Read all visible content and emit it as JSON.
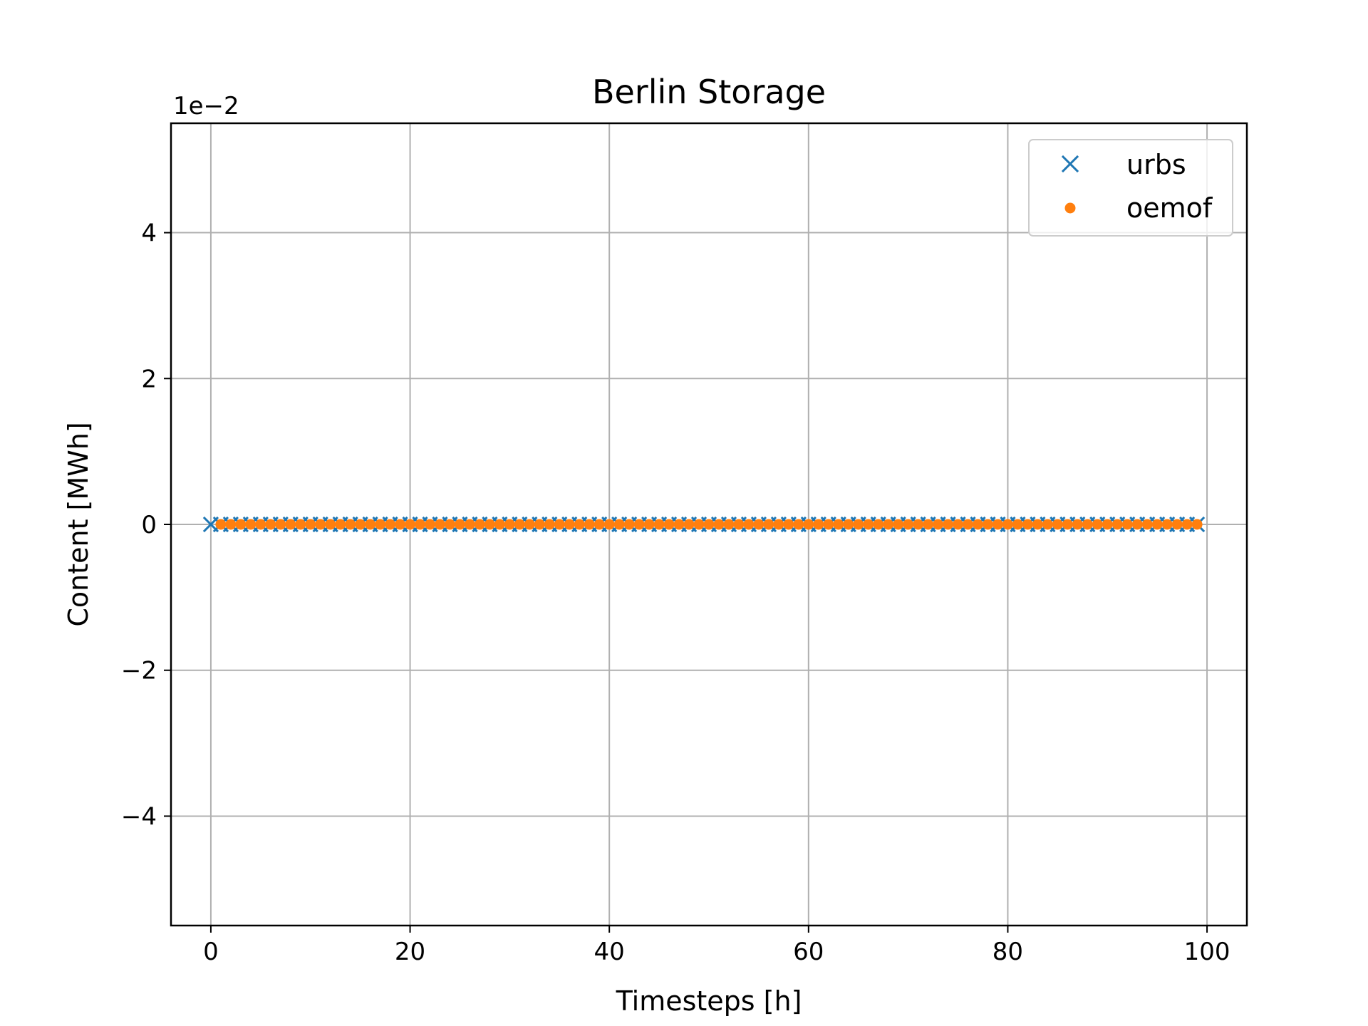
{
  "chart_data": {
    "type": "scatter",
    "title": "Berlin Storage",
    "xlabel": "Timesteps [h]",
    "ylabel": "Content [MWh]",
    "y_offset_label": "1e−2",
    "xlim": [
      -4,
      104
    ],
    "ylim": [
      -5.5,
      5.5
    ],
    "x_ticks": [
      0,
      20,
      40,
      60,
      80,
      100
    ],
    "y_ticks": [
      -4,
      -2,
      0,
      2,
      4
    ],
    "x_tick_labels": [
      "0",
      "20",
      "40",
      "60",
      "80",
      "100"
    ],
    "y_tick_labels": [
      "−4",
      "−2",
      "0",
      "2",
      "4"
    ],
    "grid": true,
    "legend_position": "top-right",
    "series": [
      {
        "name": "urbs",
        "marker": "x",
        "color": "#1f77b4",
        "x_start": 0,
        "x_end": 99,
        "x_step": 1,
        "y_constant": 0
      },
      {
        "name": "oemof",
        "marker": "dot",
        "color": "#ff7f0e",
        "x_start": 1,
        "x_end": 99,
        "x_step": 1,
        "y_constant": 0
      }
    ]
  }
}
